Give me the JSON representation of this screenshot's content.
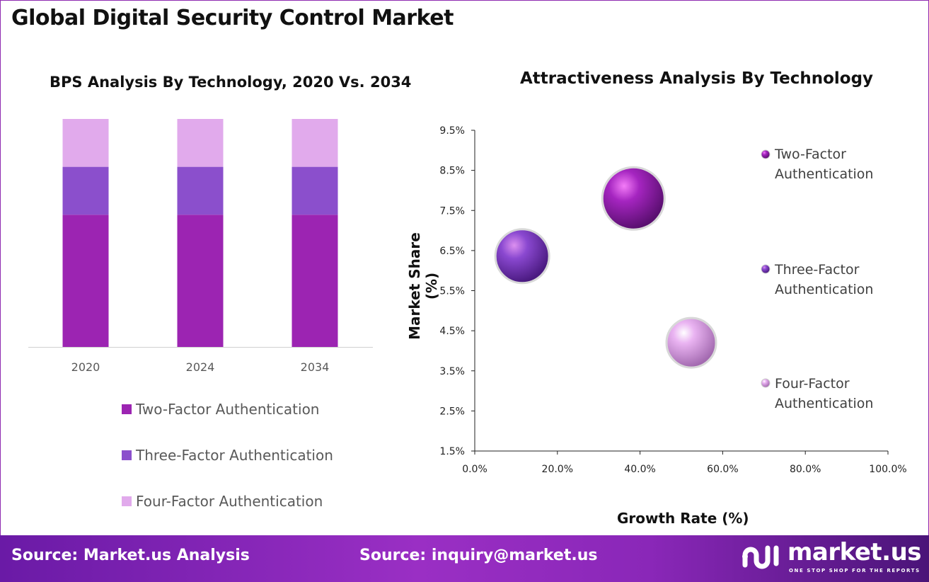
{
  "title": "Global Digital Security Control Market",
  "colors": {
    "two_factor": "#9C24B2",
    "three_factor": "#8B4FCC",
    "four_factor": "#E1AAEC",
    "footer": "#8a27b8"
  },
  "chart_data": [
    {
      "type": "bar",
      "stacked": true,
      "title": "BPS Analysis By Technology, 2020 Vs. 2034",
      "categories": [
        "2020",
        "2024",
        "2034"
      ],
      "ylim": [
        0,
        100
      ],
      "legend_position": "bottom",
      "series": [
        {
          "name": "Two-Factor Authentication",
          "values": [
            58,
            58,
            58
          ]
        },
        {
          "name": "Three-Factor Authentication",
          "values": [
            21,
            21,
            21
          ]
        },
        {
          "name": "Four-Factor Authentication",
          "values": [
            21,
            21,
            21
          ]
        }
      ]
    },
    {
      "type": "scatter",
      "subtype": "bubble",
      "title": "Attractiveness Analysis By Technology",
      "xlabel": "Growth Rate (%)",
      "ylabel": "Market Share (%)",
      "xlim": [
        0,
        100
      ],
      "ylim": [
        1.5,
        9.5
      ],
      "xticks": [
        "0.0%",
        "20.0%",
        "40.0%",
        "60.0%",
        "80.0%",
        "100.0%"
      ],
      "yticks": [
        "1.5%",
        "2.5%",
        "3.5%",
        "4.5%",
        "5.5%",
        "6.5%",
        "7.5%",
        "8.5%",
        "9.5%"
      ],
      "legend_position": "right",
      "series": [
        {
          "name": "Two-Factor Authentication",
          "legend_lines": [
            "Two-Factor",
            "Authentication"
          ],
          "x": 38.4,
          "y": 7.8,
          "size": 58
        },
        {
          "name": "Three-Factor Authentication",
          "legend_lines": [
            "Three-Factor",
            "Authentication"
          ],
          "x": 11.5,
          "y": 6.36,
          "size": 21
        },
        {
          "name": "Four-Factor Authentication",
          "legend_lines": [
            "Four-Factor",
            "Authentication"
          ],
          "x": 52.4,
          "y": 4.2,
          "size": 21
        }
      ]
    }
  ],
  "footer": {
    "source_left": "Source: Market.us Analysis",
    "source_mid": "Source: inquiry@market.us",
    "logo_name": "market.us",
    "logo_tagline": "ONE STOP SHOP FOR THE REPORTS"
  }
}
